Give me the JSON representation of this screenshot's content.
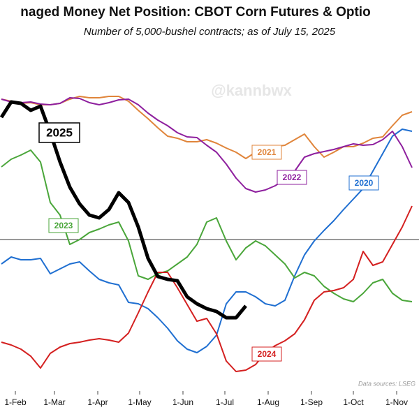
{
  "chart_data": {
    "type": "line",
    "title": "naged Money Net Position: CBOT Corn Futures & Optio",
    "subtitle": "Number of 5,000-bushel contracts; as of July 15, 2025",
    "watermark": "@kannbwx",
    "source": "Data sources: LSEG",
    "x": [
      21,
      28,
      35,
      42,
      49,
      56,
      63,
      70,
      77,
      84,
      91,
      98,
      105,
      112,
      119,
      126,
      133,
      140,
      147,
      154,
      161,
      168,
      175,
      182,
      189,
      196,
      203,
      210,
      217,
      224,
      231,
      238,
      245,
      252,
      259,
      266,
      273,
      280,
      287,
      294,
      301,
      308,
      315
    ],
    "xlim": [
      20,
      320
    ],
    "xticks": [
      {
        "value": 31,
        "label": "1-Feb"
      },
      {
        "value": 59,
        "label": "1-Mar"
      },
      {
        "value": 90,
        "label": "1-Apr"
      },
      {
        "value": 120,
        "label": "1-May"
      },
      {
        "value": 151,
        "label": "1-Jun"
      },
      {
        "value": 181,
        "label": "1-Jul"
      },
      {
        "value": 212,
        "label": "1-Aug"
      },
      {
        "value": 243,
        "label": "1-Sep"
      },
      {
        "value": 273,
        "label": "1-Oct"
      },
      {
        "value": 304,
        "label": "1-Nov"
      }
    ],
    "ylim": [
      -434000,
      566000
    ],
    "series": [
      {
        "name": "2020",
        "color": "#1f6fd1",
        "values": [
          -70000,
          -50000,
          -58000,
          -58000,
          -54000,
          -98000,
          -84000,
          -70000,
          -64000,
          -90000,
          -114000,
          -124000,
          -130000,
          -180000,
          -184000,
          -198000,
          -224000,
          -254000,
          -290000,
          -314000,
          -324000,
          -306000,
          -274000,
          -184000,
          -150000,
          -150000,
          -164000,
          -184000,
          -190000,
          -174000,
          -104000,
          -44000,
          -4000,
          26000,
          54000,
          86000,
          116000,
          146000,
          196000,
          246000,
          296000,
          316000,
          310000
        ]
      },
      {
        "name": "2021",
        "color": "#e0853b",
        "values": [
          402000,
          396000,
          390000,
          392000,
          386000,
          386000,
          390000,
          402000,
          410000,
          406000,
          406000,
          410000,
          410000,
          396000,
          370000,
          346000,
          320000,
          296000,
          290000,
          280000,
          280000,
          286000,
          276000,
          262000,
          250000,
          232000,
          250000,
          262000,
          266000,
          270000,
          286000,
          302000,
          266000,
          236000,
          250000,
          266000,
          266000,
          276000,
          290000,
          294000,
          326000,
          356000,
          366000
        ]
      },
      {
        "name": "2022",
        "color": "#8e1f9e",
        "values": [
          402000,
          394000,
          392000,
          394000,
          388000,
          386000,
          390000,
          406000,
          404000,
          392000,
          386000,
          392000,
          400000,
          402000,
          386000,
          362000,
          342000,
          326000,
          306000,
          294000,
          292000,
          270000,
          250000,
          216000,
          176000,
          146000,
          136000,
          142000,
          154000,
          172000,
          196000,
          236000,
          246000,
          252000,
          258000,
          266000,
          274000,
          270000,
          272000,
          286000,
          310000,
          266000,
          206000
        ]
      },
      {
        "name": "2023",
        "color": "#4aa63a",
        "values": [
          208000,
          230000,
          242000,
          256000,
          222000,
          106000,
          70000,
          -14000,
          0,
          20000,
          30000,
          42000,
          50000,
          -4000,
          -104000,
          -114000,
          -98000,
          -90000,
          -70000,
          -50000,
          -14000,
          50000,
          62000,
          -4000,
          -58000,
          -24000,
          -4000,
          -18000,
          -44000,
          -70000,
          -110000,
          -94000,
          -104000,
          -134000,
          -154000,
          -170000,
          -178000,
          -154000,
          -124000,
          -114000,
          -154000,
          -174000,
          -178000
        ]
      },
      {
        "name": "2024",
        "color": "#d42020",
        "values": [
          -294000,
          -302000,
          -314000,
          -334000,
          -368000,
          -326000,
          -308000,
          -298000,
          -294000,
          -288000,
          -284000,
          -288000,
          -294000,
          -268000,
          -210000,
          -150000,
          -94000,
          -94000,
          -138000,
          -186000,
          -234000,
          -226000,
          -270000,
          -348000,
          -378000,
          -374000,
          -358000,
          -324000,
          -304000,
          -290000,
          -270000,
          -230000,
          -174000,
          -150000,
          -146000,
          -138000,
          -114000,
          -34000,
          -74000,
          -64000,
          -14000,
          36000,
          96000
        ]
      },
      {
        "name": "2025",
        "color": "#000000",
        "values": [
          350000,
          394000,
          390000,
          370000,
          382000,
          306000,
          222000,
          150000,
          102000,
          70000,
          62000,
          86000,
          134000,
          106000,
          36000,
          -54000,
          -106000,
          -114000,
          -118000,
          -164000,
          -184000,
          -198000,
          -206000,
          -224000,
          -224000,
          -190000,
          null,
          null,
          null,
          null,
          null,
          null,
          null,
          null,
          null,
          null,
          null,
          null,
          null,
          null,
          null,
          null,
          null
        ]
      }
    ]
  }
}
